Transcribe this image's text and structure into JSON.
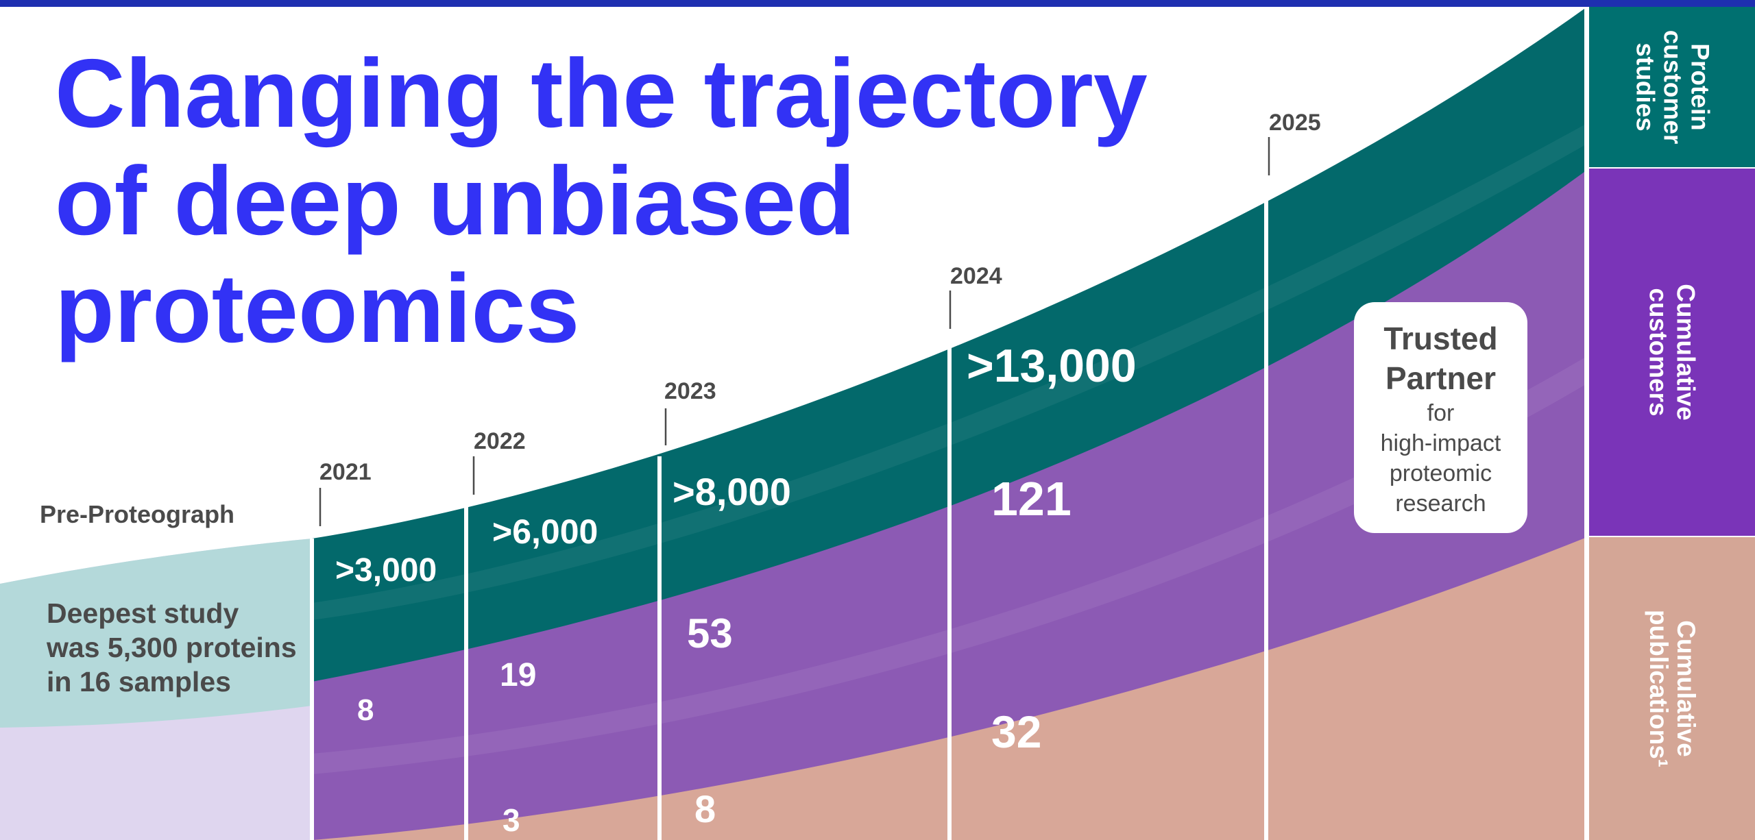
{
  "title_lines": [
    "Changing the trajectory",
    "of deep unbiased",
    "proteomics"
  ],
  "pre_proteograph": {
    "label": "Pre-Proteograph",
    "note_lines": [
      "Deepest study",
      "was 5,300 proteins",
      "in 16 samples"
    ]
  },
  "trusted_partner": {
    "title_lines": [
      "Trusted",
      "Partner"
    ],
    "body_lines": [
      "for",
      "high-impact",
      "proteomic",
      "research"
    ]
  },
  "colors": {
    "top_bar": "#1e2fb0",
    "title": "#3232f5",
    "teal": "#03696b",
    "purple": "#8c5ab4",
    "peach": "#d8a798",
    "pre_teal": "#b4d9da",
    "pre_purple": "#dfd6ef",
    "side_teal": "#007070",
    "side_purple": "#7a34b8",
    "side_peach": "#d4a696"
  },
  "chart_data": {
    "type": "area",
    "title": "Changing the trajectory of deep unbiased proteomics",
    "years": [
      "2021",
      "2022",
      "2023",
      "2024",
      "2025"
    ],
    "series": [
      {
        "name": "Protein customer studies",
        "labels": [
          ">3,000",
          ">6,000",
          ">8,000",
          ">13,000",
          ""
        ]
      },
      {
        "name": "Cumulative customers",
        "values": [
          8,
          19,
          53,
          121,
          null
        ],
        "labels": [
          "8",
          "19",
          "53",
          "121",
          ""
        ]
      },
      {
        "name": "Cumulative publications¹",
        "values": [
          null,
          3,
          8,
          32,
          null
        ],
        "labels": [
          "",
          "3",
          "8",
          "32",
          ""
        ]
      }
    ],
    "legend_position": "right",
    "legend_labels": [
      [
        "Protein",
        "customer",
        "studies"
      ],
      [
        "Cumulative",
        "customers"
      ],
      [
        "Cumulative",
        "publications¹"
      ]
    ]
  }
}
